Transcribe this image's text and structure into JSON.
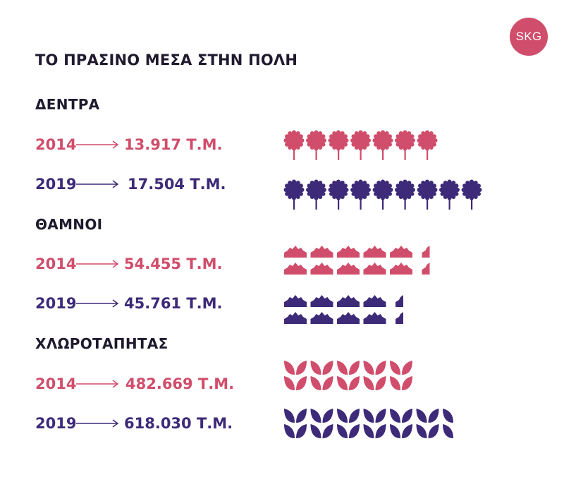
{
  "logo": "SKG",
  "title": "ΤΟ ΠΡΑΣΙΝΟ ΜΕΣΑ ΣΤΗΝ ΠΟΛΗ",
  "colors": {
    "y2014": "#d04d6b",
    "y2019": "#3d2a78"
  },
  "unit_icon_value_note": "",
  "chart_data": {
    "type": "bar",
    "style": "pictogram",
    "categories": [
      "ΔΕΝΤΡΑ",
      "ΘΑΜΝΟΙ",
      "ΧΛΩΡΟΤΑΠΗΤΑΣ"
    ],
    "series": [
      {
        "name": "2014",
        "labels": [
          "13.917 Τ.Μ.",
          "54.455 Τ.Μ.",
          "482.669 Τ.Μ."
        ],
        "values": [
          13917,
          54455,
          482669
        ]
      },
      {
        "name": "2019",
        "labels": [
          "17.504 Τ.Μ.",
          "45.761 Τ.Μ.",
          "618.030 Τ.Μ."
        ],
        "values": [
          17504,
          45761,
          618030
        ]
      }
    ],
    "icon_counts": {
      "ΔΕΝΤΡΑ": [
        7,
        9
      ],
      "ΘΑΜΝΟΙ": [
        11,
        9
      ],
      "ΧΛΩΡΟΤΑΠΗΤΑΣ": [
        5,
        6.5
      ]
    },
    "icons": {
      "ΔΕΝΤΡΑ": "tree-icon",
      "ΘΑΜΝΟΙ": "bush-icon",
      "ΧΛΩΡΟΤΑΠΗΤΑΣ": "leaf-sprout-icon"
    }
  }
}
